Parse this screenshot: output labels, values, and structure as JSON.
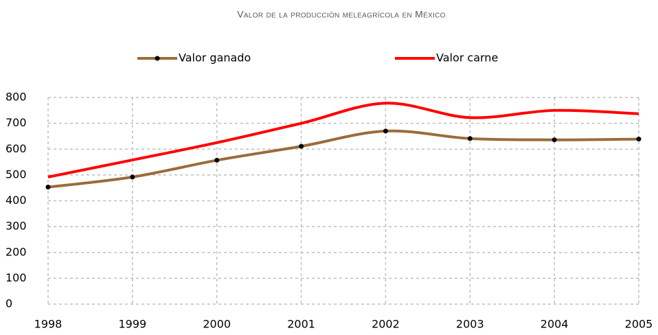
{
  "chart_data": {
    "type": "line",
    "title": "Valor de la producción meleagrícola en México",
    "x": [
      1998,
      1999,
      2000,
      2001,
      2002,
      2003,
      2004,
      2005
    ],
    "xlim": [
      1998,
      2005
    ],
    "xticks": [
      1998,
      1999,
      2000,
      2001,
      2002,
      2003,
      2004,
      2005
    ],
    "ylim": [
      0,
      800
    ],
    "yticks": [
      0,
      100,
      200,
      300,
      400,
      500,
      600,
      700,
      800
    ],
    "grid": true,
    "legend": "top",
    "series": [
      {
        "name": "Valor ganado",
        "color": "#9c6b3c",
        "markers": true,
        "values": [
          453,
          492,
          557,
          611,
          670,
          641,
          636,
          639
        ]
      },
      {
        "name": "Valor carne",
        "color": "#ff0000",
        "markers": false,
        "values": [
          492,
          558,
          625,
          700,
          778,
          722,
          750,
          737
        ]
      }
    ]
  }
}
